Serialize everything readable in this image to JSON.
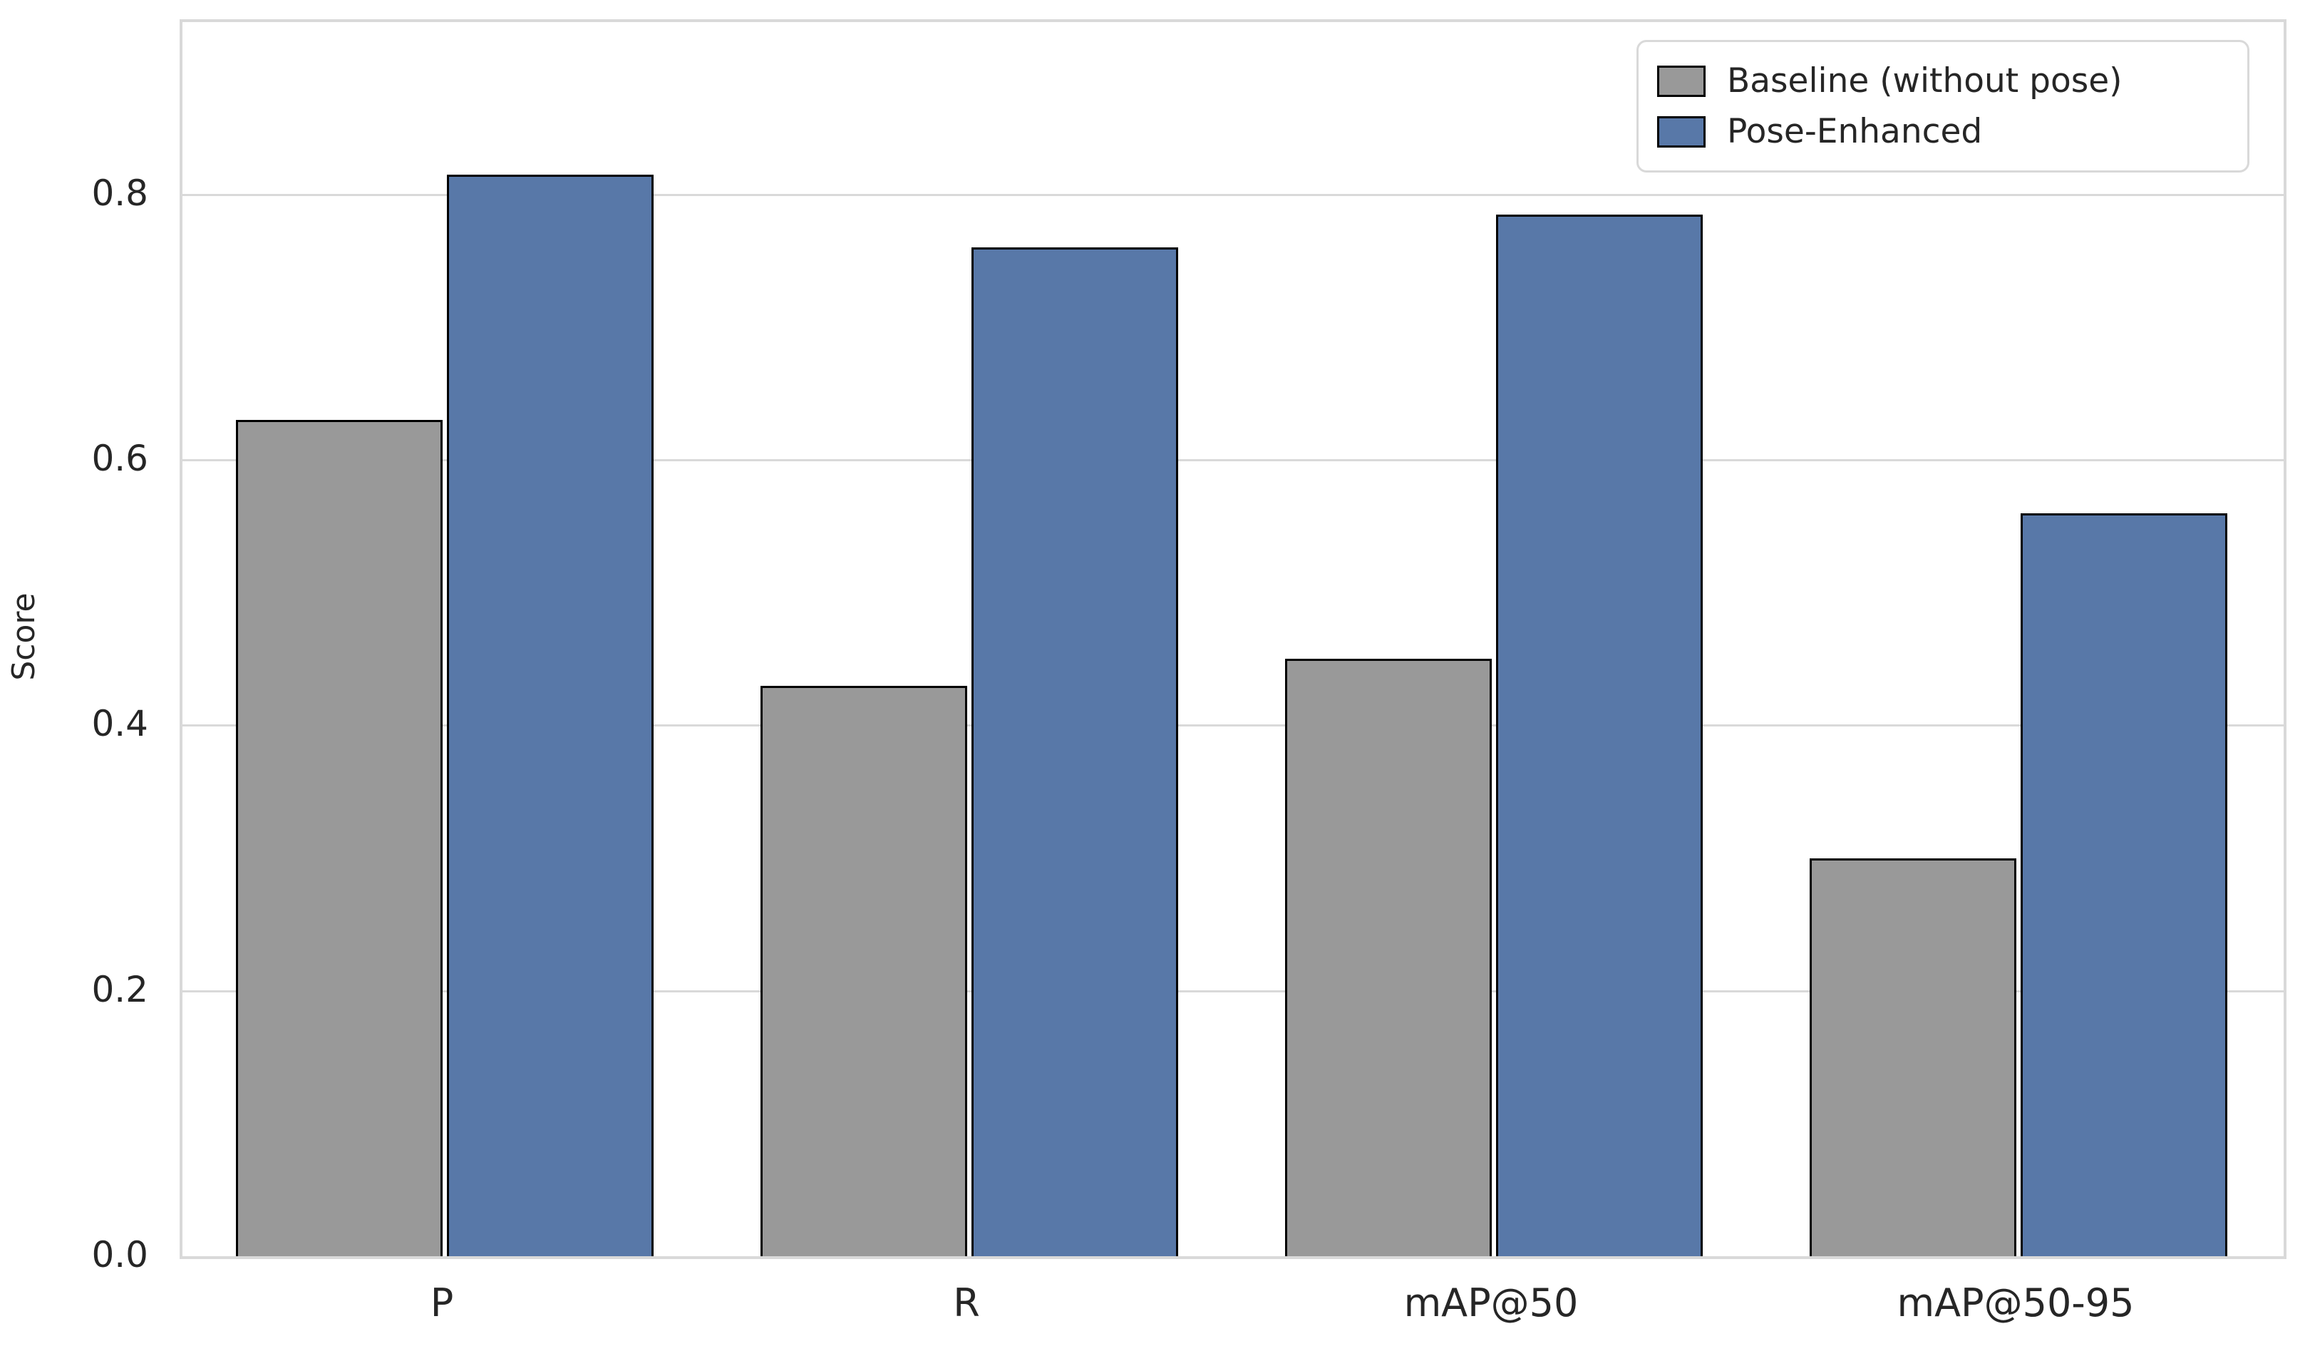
{
  "chart_data": {
    "type": "bar",
    "categories": [
      "P",
      "R",
      "mAP@50",
      "mAP@50-95"
    ],
    "series": [
      {
        "name": "Baseline (without pose)",
        "color": "#999999",
        "values": [
          0.63,
          0.43,
          0.45,
          0.3
        ]
      },
      {
        "name": "Pose-Enhanced",
        "color": "#5878a8",
        "values": [
          0.815,
          0.76,
          0.785,
          0.56
        ]
      }
    ],
    "title": "",
    "xlabel": "",
    "ylabel": "Score",
    "ylim": [
      0,
      0.93
    ],
    "yticks": [
      0.0,
      0.2,
      0.4,
      0.6,
      0.8
    ],
    "ytick_labels": [
      "0.0",
      "0.2",
      "0.4",
      "0.6",
      "0.8"
    ],
    "grid": "horizontal",
    "legend_position": "upper right",
    "bar_edge_color": "#000000",
    "grid_color": "#d9d9d9",
    "text_color": "#262626",
    "background_color": "#ffffff"
  }
}
